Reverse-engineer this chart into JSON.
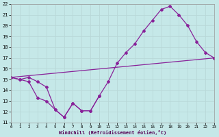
{
  "xlabel": "Windchill (Refroidissement éolien,°C)",
  "bg_color": "#c5e8e8",
  "grid_color": "#aad4d4",
  "line_color": "#882299",
  "xmin": 0,
  "xmax": 23,
  "ymin": 11,
  "ymax": 22,
  "series1_x": [
    0,
    1,
    2,
    3,
    4,
    5,
    6,
    7,
    8,
    9,
    10
  ],
  "series1_y": [
    15.2,
    15.0,
    14.8,
    13.3,
    13.0,
    12.2,
    11.5,
    12.8,
    12.1,
    12.1,
    13.5
  ],
  "series2_x": [
    0,
    1,
    2,
    3,
    4,
    5,
    6,
    7,
    8,
    9,
    10,
    11,
    12,
    13,
    14,
    15,
    16,
    17,
    18,
    19,
    20,
    21,
    22,
    23
  ],
  "series2_y": [
    15.2,
    15.0,
    15.2,
    14.8,
    14.3,
    12.2,
    11.5,
    12.8,
    12.1,
    12.1,
    13.5,
    14.8,
    16.5,
    17.5,
    18.3,
    19.5,
    20.5,
    21.5,
    21.8,
    21.0,
    20.0,
    18.5,
    17.5,
    17.0
  ],
  "series3_x": [
    0,
    23
  ],
  "series3_y": [
    15.2,
    17.0
  ]
}
